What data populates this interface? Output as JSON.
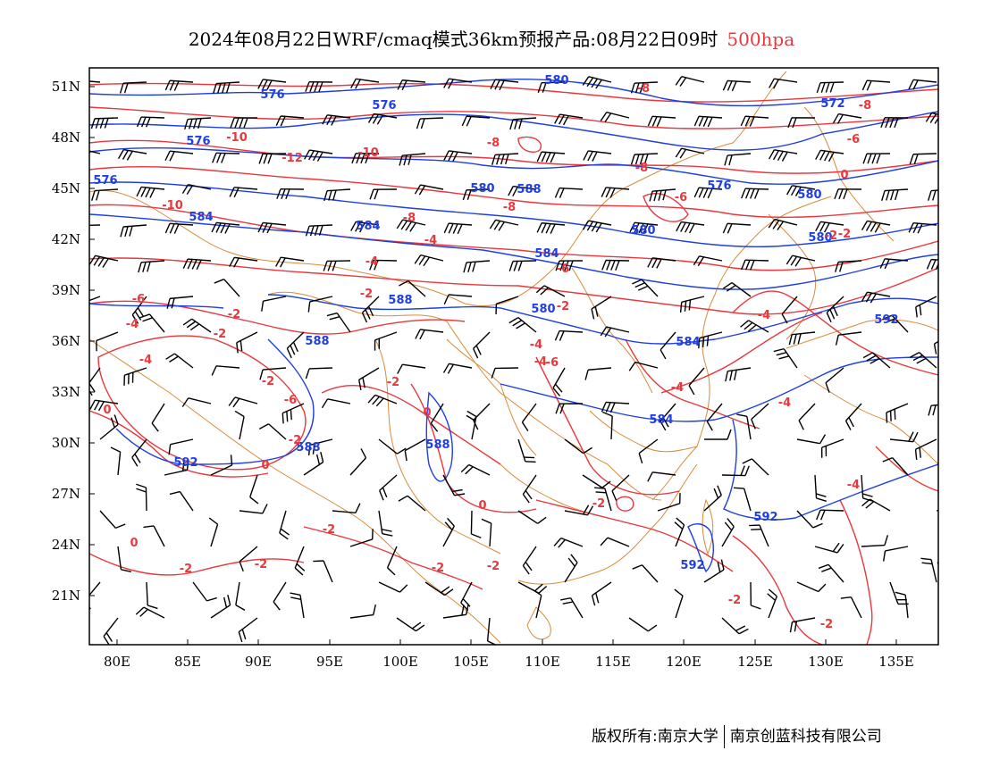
{
  "title": {
    "main": "2024年08月22日WRF/cmaq模式36km预报产品:08月22日09时",
    "level": "500hpa"
  },
  "axes": {
    "lat_labels": [
      "51N",
      "48N",
      "45N",
      "42N",
      "39N",
      "36N",
      "33N",
      "30N",
      "27N",
      "24N",
      "21N"
    ],
    "lon_labels": [
      "80E",
      "85E",
      "90E",
      "95E",
      "100E",
      "105E",
      "110E",
      "115E",
      "120E",
      "125E",
      "130E",
      "135E"
    ]
  },
  "geopotential_labels": [
    "576",
    "576",
    "576",
    "576",
    "572",
    "580",
    "580",
    "576",
    "580",
    "584",
    "584",
    "584",
    "580",
    "588",
    "584",
    "588",
    "584",
    "588",
    "592",
    "588",
    "592",
    "592",
    "592",
    "580",
    "580",
    "588"
  ],
  "temperature_labels": [
    "-10",
    "-12",
    "-10",
    "-8",
    "-10",
    "-8",
    "-8",
    "-8",
    "-6",
    "-8",
    "-8",
    "-6",
    "-6",
    "-4",
    "-4",
    "-6",
    "-2",
    "-2",
    "-4",
    "-2",
    "-4",
    "-2",
    "-6",
    "-4",
    "-2",
    "-4",
    "-2",
    "-2",
    "0",
    "-2",
    "0",
    "0",
    "-2",
    "0",
    "-2",
    "-2",
    "-2",
    "-2",
    "-2",
    "0",
    "-4",
    "-4",
    "-4",
    "-2",
    "-2",
    "-6",
    "-2",
    "0",
    "-4"
  ],
  "colors": {
    "geopotential": "#1f3fe0",
    "temperature": "#e8383d",
    "boundaries": "#d98a3a",
    "barbs": "#000000"
  },
  "footer": {
    "left": "版权所有:南京大学",
    "right": "南京创蓝科技有限公司"
  }
}
